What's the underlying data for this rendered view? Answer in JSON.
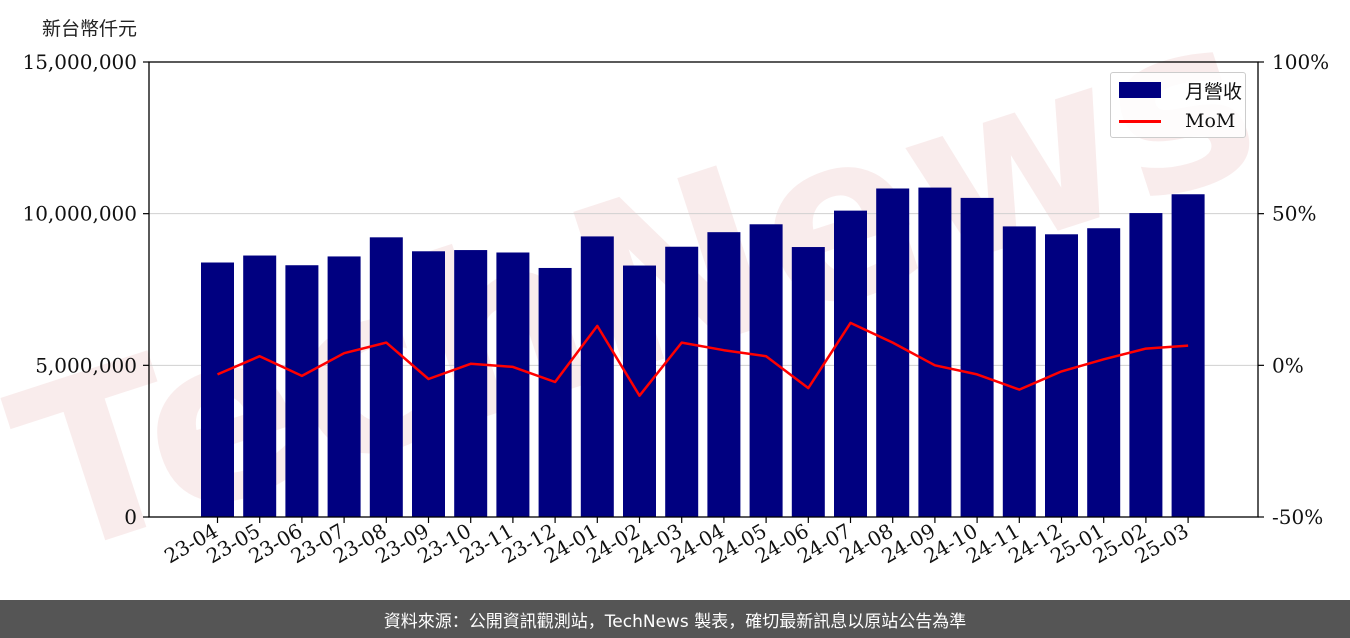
{
  "unit_label": "新台幣仟元",
  "footer_text": "資料來源：公開資訊觀測站，TechNews 製表，確切最新訊息以原站公告為準",
  "watermark_text": "TechNews",
  "colors": {
    "bar": "#000080",
    "line": "#ff0000",
    "footer_bg": "#555555"
  },
  "chart_data": {
    "type": "bar",
    "categories": [
      "23-04",
      "23-05",
      "23-06",
      "23-07",
      "23-08",
      "23-09",
      "23-10",
      "23-11",
      "23-12",
      "24-01",
      "24-02",
      "24-03",
      "24-04",
      "24-05",
      "24-06",
      "24-07",
      "24-08",
      "24-09",
      "24-10",
      "24-11",
      "24-12",
      "25-01",
      "25-02",
      "25-03"
    ],
    "series": [
      {
        "name": "月營收",
        "axis": "left",
        "type": "bar",
        "values": [
          8390000,
          8620000,
          8300000,
          8590000,
          9220000,
          8760000,
          8800000,
          8720000,
          8210000,
          9250000,
          8290000,
          8910000,
          9390000,
          9650000,
          8900000,
          10100000,
          10830000,
          10860000,
          10520000,
          9580000,
          9320000,
          9520000,
          10020000,
          10640000
        ]
      },
      {
        "name": "MoM",
        "axis": "right",
        "type": "line",
        "values": [
          -3,
          3,
          -3.5,
          4,
          7.5,
          -4.5,
          0.5,
          -0.5,
          -5.5,
          13,
          -10,
          7.5,
          5,
          3,
          -7.5,
          14,
          7.5,
          0,
          -3,
          -8,
          -2,
          2,
          5.5,
          6.5
        ]
      }
    ],
    "y_left": {
      "ylim": [
        0,
        15000000
      ],
      "ticks": [
        0,
        5000000,
        10000000,
        15000000
      ],
      "tick_labels": [
        "0",
        "5,000,000",
        "10,000,000",
        "15,000,000"
      ]
    },
    "y_right": {
      "ylim": [
        -50,
        100
      ],
      "ticks": [
        -50,
        0,
        50,
        100
      ],
      "tick_labels": [
        "-50%",
        "0%",
        "50%",
        "100%"
      ]
    },
    "grid": "horizontal",
    "legend_position": "top-right",
    "title": "",
    "xlabel": "",
    "ylabel": "新台幣仟元"
  }
}
